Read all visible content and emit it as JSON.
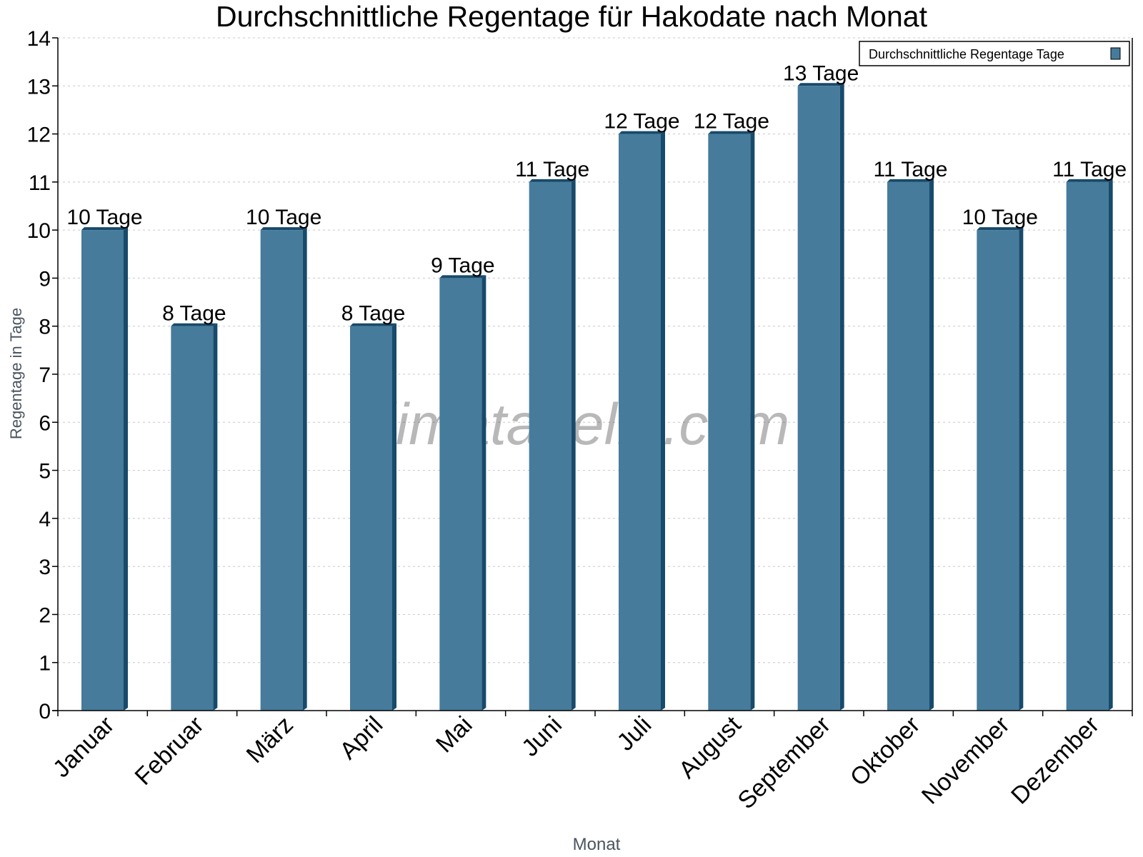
{
  "chart_data": {
    "type": "bar",
    "title": "Durchschnittliche Regentage für Hakodate nach Monat",
    "xlabel": "Monat",
    "ylabel": "Regentage in Tage",
    "categories": [
      "Januar",
      "Februar",
      "März",
      "April",
      "Mai",
      "Juni",
      "Juli",
      "August",
      "September",
      "Oktober",
      "November",
      "Dezember"
    ],
    "series": [
      {
        "name": "Durchschnittliche Regentage Tage",
        "values": [
          10,
          8,
          10,
          8,
          9,
          11,
          12,
          12,
          13,
          11,
          10,
          11
        ],
        "color": "#467b9b",
        "side_color": "#174a6b"
      }
    ],
    "data_labels": [
      "10 Tage",
      "8 Tage",
      "10 Tage",
      "8 Tage",
      "9 Tage",
      "11 Tage",
      "12 Tage",
      "12 Tage",
      "13 Tage",
      "11 Tage",
      "10 Tage",
      "11 Tage"
    ],
    "ylim": [
      0,
      14
    ],
    "yticks": [
      "0",
      "1",
      "2",
      "3",
      "4",
      "5",
      "6",
      "7",
      "8",
      "9",
      "10",
      "11",
      "12",
      "13",
      "14"
    ],
    "grid": true,
    "legend_position": "top-right",
    "watermark": "klimatabelle.com"
  }
}
